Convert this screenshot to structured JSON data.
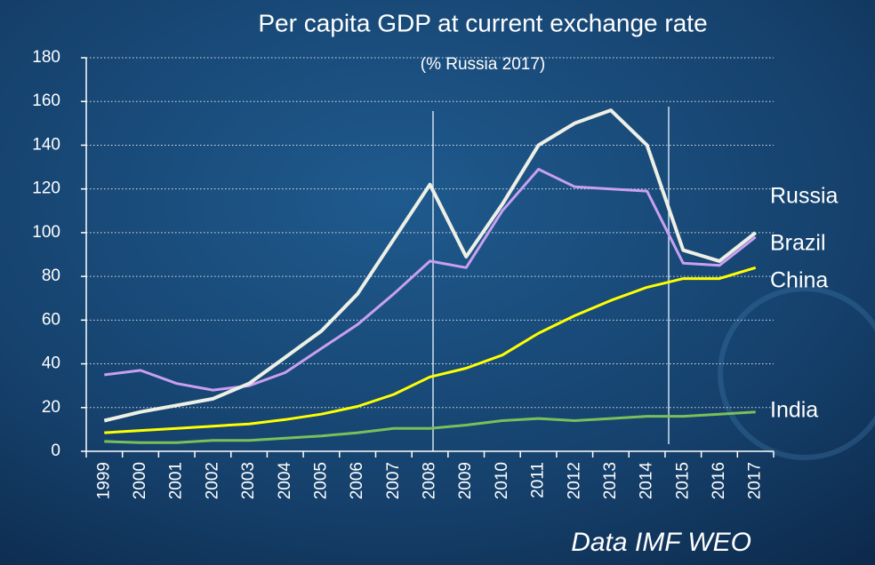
{
  "chart_data": {
    "type": "line",
    "title": "Per capita GDP at current exchange rate",
    "subtitle": "(% Russia 2017)",
    "source": "Data IMF WEO",
    "categories": [
      "1999",
      "2000",
      "2001",
      "2002",
      "2003",
      "2004",
      "2005",
      "2006",
      "2007",
      "2008",
      "2009",
      "2010",
      "2011",
      "2012",
      "2013",
      "2014",
      "2015",
      "2016",
      "2017"
    ],
    "series": [
      {
        "name": "Russia",
        "color": "#eef0e6",
        "values": [
          14,
          18,
          21,
          24,
          31,
          43,
          55,
          72,
          97,
          122,
          89,
          113,
          140,
          150,
          156,
          140,
          92,
          87,
          100
        ]
      },
      {
        "name": "Brazil",
        "color": "#c9a0f0",
        "values": [
          35,
          37,
          31,
          28,
          30,
          36,
          47,
          58,
          72,
          87,
          84,
          110,
          129,
          121,
          120,
          119,
          86,
          85,
          98
        ]
      },
      {
        "name": "China",
        "color": "#ffff00",
        "values": [
          8.5,
          9.5,
          10.5,
          11.5,
          12.5,
          14.5,
          17,
          20.5,
          26,
          34,
          38,
          44,
          54,
          62,
          69,
          75,
          79,
          79,
          84
        ]
      },
      {
        "name": "India",
        "color": "#7ac05a",
        "values": [
          4.5,
          4,
          4,
          5,
          5,
          6,
          7,
          8.5,
          10.5,
          10.5,
          12,
          14,
          15,
          14,
          15,
          16,
          16,
          17,
          18
        ]
      }
    ],
    "ylim": [
      0,
      180
    ],
    "yticks": [
      0,
      20,
      40,
      60,
      80,
      100,
      120,
      140,
      160,
      180
    ],
    "grid": true
  }
}
